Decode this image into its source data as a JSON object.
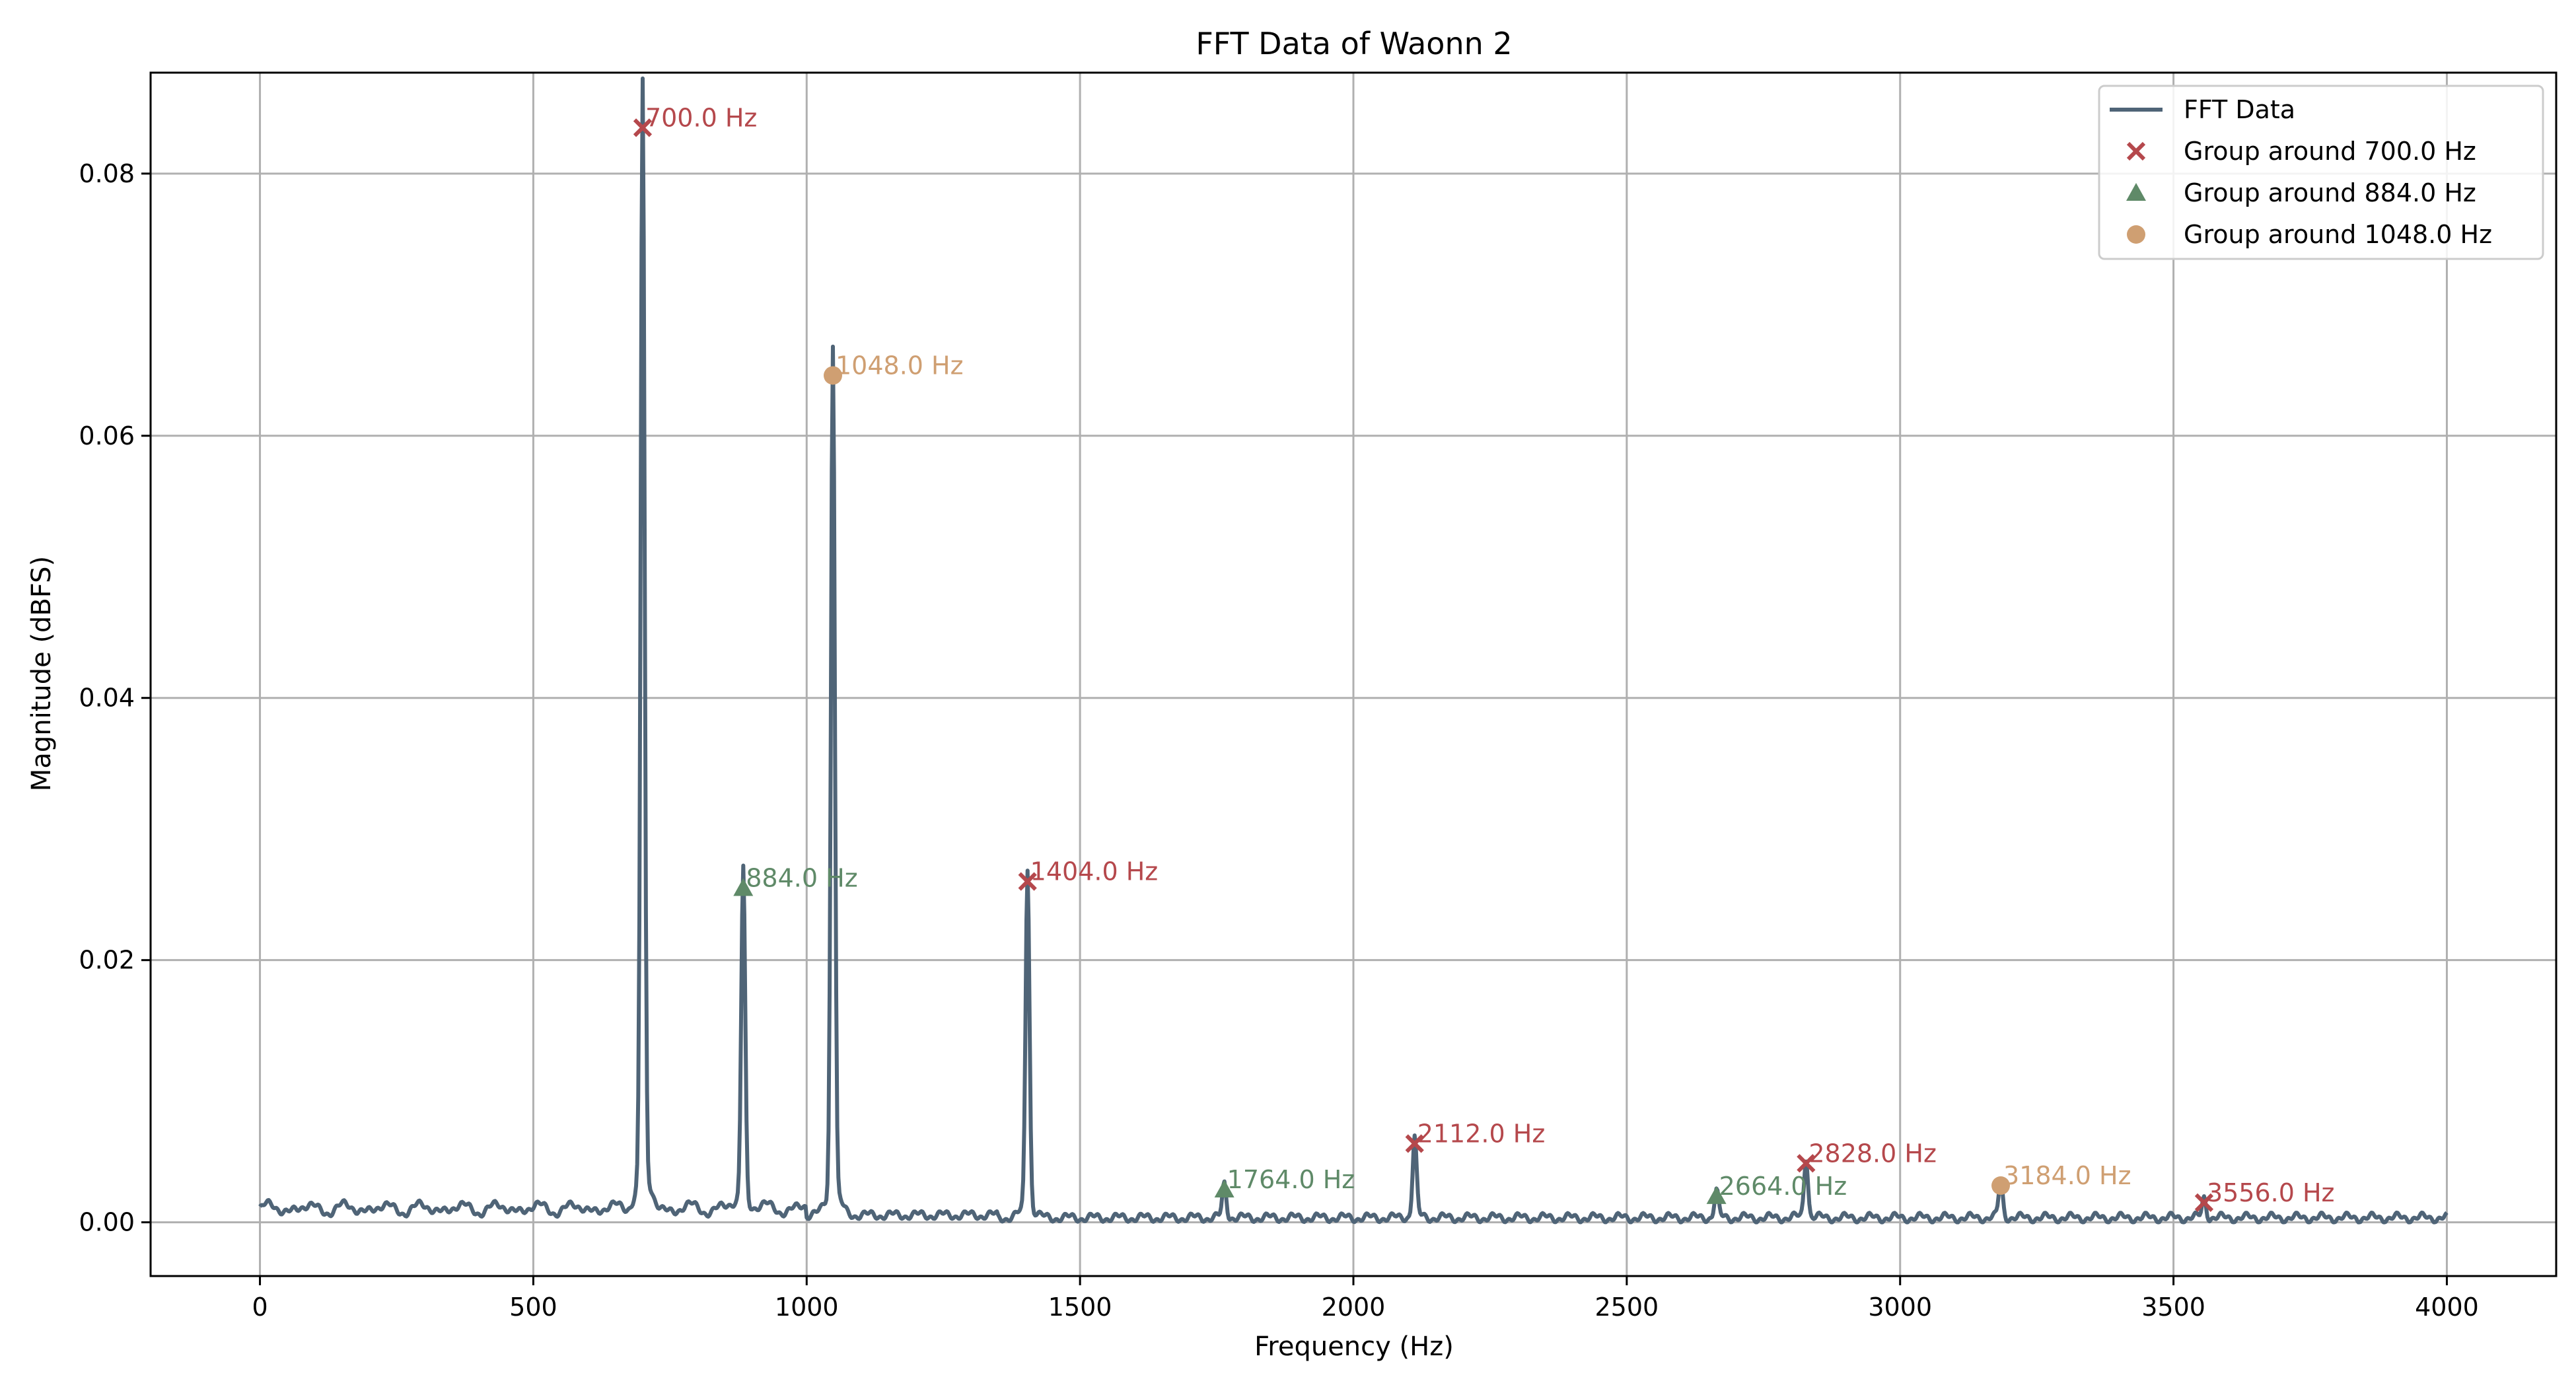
{
  "chart_data": {
    "type": "line",
    "title": "FFT Data of Waonn 2",
    "xlabel": "Frequency (Hz)",
    "ylabel": "Magnitude (dBFS)",
    "xlim": [
      -200,
      4200
    ],
    "ylim": [
      -0.0041,
      0.0877
    ],
    "xticks": [
      0,
      500,
      1000,
      1500,
      2000,
      2500,
      3000,
      3500,
      4000
    ],
    "xtick_labels": [
      "0",
      "500",
      "1000",
      "1500",
      "2000",
      "2500",
      "3000",
      "3500",
      "4000"
    ],
    "yticks": [
      0.0,
      0.02,
      0.04,
      0.06,
      0.08
    ],
    "ytick_labels": [
      "0.00",
      "0.02",
      "0.04",
      "0.06",
      "0.08"
    ],
    "grid": true,
    "legend_position": "top-right",
    "line_series": {
      "name": "FFT Data",
      "color": "#4f6477",
      "peaks": [
        {
          "x": 700,
          "y": 0.0835
        },
        {
          "x": 884,
          "y": 0.0255
        },
        {
          "x": 1048,
          "y": 0.0646
        },
        {
          "x": 1404,
          "y": 0.026
        },
        {
          "x": 1764,
          "y": 0.0025
        },
        {
          "x": 2112,
          "y": 0.006
        },
        {
          "x": 2664,
          "y": 0.002
        },
        {
          "x": 2828,
          "y": 0.0045
        },
        {
          "x": 3184,
          "y": 0.0028
        },
        {
          "x": 3556,
          "y": 0.0015
        }
      ]
    },
    "groups": [
      {
        "name": "Group around 700.0 Hz",
        "marker": "x",
        "color": "#b5484c",
        "points": [
          {
            "x": 700,
            "y": 0.0835,
            "label": "700.0 Hz"
          },
          {
            "x": 1404,
            "y": 0.026,
            "label": "1404.0 Hz"
          },
          {
            "x": 2112,
            "y": 0.006,
            "label": "2112.0 Hz"
          },
          {
            "x": 2828,
            "y": 0.0045,
            "label": "2828.0 Hz"
          },
          {
            "x": 3556,
            "y": 0.0015,
            "label": "3556.0 Hz"
          }
        ]
      },
      {
        "name": "Group around 884.0 Hz",
        "marker": "triangle",
        "color": "#5f8a68",
        "points": [
          {
            "x": 884,
            "y": 0.0255,
            "label": "884.0 Hz"
          },
          {
            "x": 1764,
            "y": 0.0025,
            "label": "1764.0 Hz"
          },
          {
            "x": 2664,
            "y": 0.002,
            "label": "2664.0 Hz"
          }
        ]
      },
      {
        "name": "Group around 1048.0 Hz",
        "marker": "circle",
        "color": "#cf9f72",
        "points": [
          {
            "x": 1048,
            "y": 0.0646,
            "label": "1048.0 Hz"
          },
          {
            "x": 3184,
            "y": 0.0028,
            "label": "3184.0 Hz"
          }
        ]
      }
    ]
  }
}
